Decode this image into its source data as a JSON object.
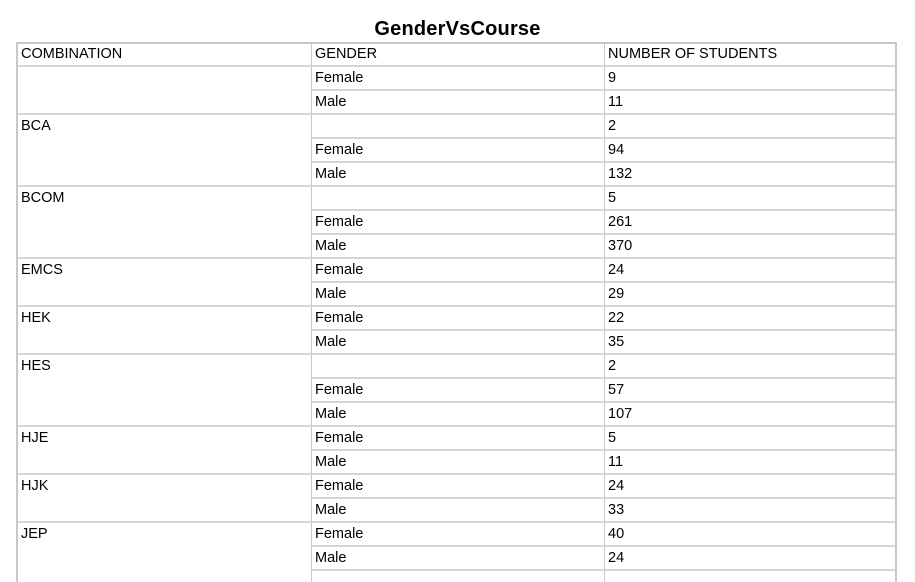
{
  "title": "GenderVsCourse",
  "headers": {
    "combination": "COMBINATION",
    "gender": "GENDER",
    "students": "NUMBER OF STUDENTS"
  },
  "groups": [
    {
      "combination": "",
      "rows": [
        {
          "gender": "Female",
          "count": "9"
        },
        {
          "gender": "Male",
          "count": "11"
        }
      ]
    },
    {
      "combination": "BCA",
      "rows": [
        {
          "gender": "",
          "count": "2"
        },
        {
          "gender": "Female",
          "count": "94"
        },
        {
          "gender": "Male",
          "count": "132"
        }
      ]
    },
    {
      "combination": "BCOM",
      "rows": [
        {
          "gender": "",
          "count": "5"
        },
        {
          "gender": "Female",
          "count": "261"
        },
        {
          "gender": "Male",
          "count": "370"
        }
      ]
    },
    {
      "combination": "EMCS",
      "rows": [
        {
          "gender": "Female",
          "count": "24"
        },
        {
          "gender": "Male",
          "count": "29"
        }
      ]
    },
    {
      "combination": "HEK",
      "rows": [
        {
          "gender": "Female",
          "count": "22"
        },
        {
          "gender": "Male",
          "count": "35"
        }
      ]
    },
    {
      "combination": "HES",
      "rows": [
        {
          "gender": "",
          "count": "2"
        },
        {
          "gender": "Female",
          "count": "57"
        },
        {
          "gender": "Male",
          "count": "107"
        }
      ]
    },
    {
      "combination": "HJE",
      "rows": [
        {
          "gender": "Female",
          "count": "5"
        },
        {
          "gender": "Male",
          "count": "11"
        }
      ]
    },
    {
      "combination": "HJK",
      "rows": [
        {
          "gender": "Female",
          "count": "24"
        },
        {
          "gender": "Male",
          "count": "33"
        }
      ]
    },
    {
      "combination": "JEP",
      "rows": [
        {
          "gender": "Female",
          "count": "40"
        },
        {
          "gender": "Male",
          "count": "24"
        },
        {
          "gender": "",
          "count": ""
        }
      ]
    }
  ]
}
